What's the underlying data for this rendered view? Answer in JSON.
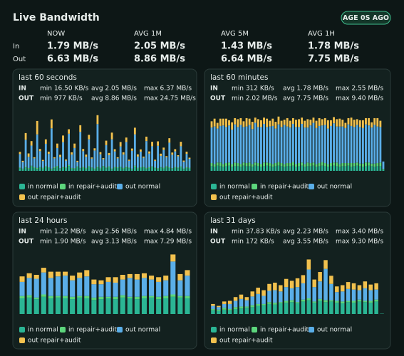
{
  "header": {
    "title": "Live Bandwidth",
    "badge": "AGE 0S AGO"
  },
  "summary": {
    "columns": [
      "NOW",
      "AVG 1M",
      "AVG 5M",
      "AVG 1H"
    ],
    "rows": [
      {
        "label": "In",
        "values": [
          "1.79 MB/s",
          "2.05 MB/s",
          "1.43 MB/s",
          "1.78 MB/s"
        ]
      },
      {
        "label": "Out",
        "values": [
          "6.63 MB/s",
          "8.86 MB/s",
          "6.64 MB/s",
          "7.75 MB/s"
        ]
      }
    ]
  },
  "chart_data": [
    {
      "type": "bar",
      "stacked": true,
      "legend": "bottom",
      "title": "last 60 seconds",
      "stats": [
        {
          "label": "IN",
          "min": "min 16.50 KB/s",
          "avg": "avg 2.05 MB/s",
          "max": "max 6.37 MB/s"
        },
        {
          "label": "OUT",
          "min": "min 977 KB/s",
          "avg": "avg 8.86 MB/s",
          "max": "max 24.75 MB/s"
        }
      ],
      "ylim": [
        0,
        28
      ],
      "series": [
        {
          "name": "in normal",
          "color": "#2bb594",
          "values": [
            1.2,
            0.8,
            1.5,
            1.0,
            2.1,
            1.3,
            0.9,
            1.6,
            1.1,
            1.8,
            1.4,
            0.7,
            1.2,
            1.9,
            1.0,
            1.5,
            1.3,
            2.2,
            1.1,
            0.9,
            1.7,
            1.2,
            1.4,
            1.0,
            1.8,
            1.3,
            0.8,
            1.5,
            1.1,
            2.0,
            1.2,
            1.6,
            0.9,
            1.4,
            1.3,
            1.7,
            1.0,
            1.5,
            1.2,
            0.8,
            1.9,
            1.1,
            1.4,
            1.6,
            1.0,
            1.3,
            1.8,
            1.2,
            0.9,
            1.5,
            1.1,
            1.7,
            1.3,
            1.0,
            1.4,
            1.2,
            1.6,
            0.9,
            1.3,
            1.1
          ]
        },
        {
          "name": "in repair+audit",
          "color": "#5cd67c",
          "values": [
            0.3,
            0.2,
            0.4,
            0.3,
            0.2,
            0.3,
            0.4,
            0.2,
            0.3,
            0.3,
            0.2,
            0.3,
            0.4,
            0.3,
            0.2,
            0.3,
            0.3,
            0.4,
            0.2,
            0.3,
            0.3,
            0.2,
            0.4,
            0.3,
            0.3,
            0.2,
            0.3,
            0.4,
            0.3,
            0.2,
            0.3,
            0.4,
            0.2,
            0.3,
            0.3,
            0.2,
            0.3,
            0.4,
            0.3,
            0.2,
            0.4,
            0.3,
            0.2,
            0.3,
            0.3,
            0.4,
            0.2,
            0.3,
            0.3,
            0.2,
            0.3,
            0.4,
            0.3,
            0.2,
            0.3,
            0.3,
            0.4,
            0.2,
            0.3,
            0.3
          ]
        },
        {
          "name": "out normal",
          "color": "#5aaee8",
          "values": [
            6,
            3,
            12,
            5,
            9,
            4,
            15,
            7,
            3,
            10,
            6,
            18,
            4,
            8,
            5,
            11,
            3,
            14,
            6,
            9,
            2,
            16,
            7,
            5,
            12,
            4,
            8,
            19,
            6,
            3,
            10,
            5,
            13,
            7,
            4,
            9,
            6,
            11,
            3,
            8,
            14,
            5,
            7,
            4,
            12,
            6,
            9,
            3,
            10,
            5,
            8,
            4,
            11,
            6,
            7,
            5,
            9,
            3,
            6,
            4
          ]
        },
        {
          "name": "out repair+audit",
          "color": "#f2c14e",
          "values": [
            1,
            0.5,
            3,
            1.5,
            2,
            0.5,
            6,
            1,
            0.5,
            2,
            1,
            4,
            0.5,
            2,
            1,
            3,
            0.5,
            2,
            1,
            2,
            0.5,
            3,
            1,
            1,
            2,
            0.5,
            1,
            4,
            1,
            0.5,
            2,
            1,
            3,
            1,
            0.5,
            2,
            1,
            2,
            0.5,
            1,
            3,
            1,
            1,
            0.5,
            2,
            1,
            2,
            0.5,
            2,
            1,
            1,
            0.5,
            2,
            1,
            1,
            0.5,
            2,
            0.5,
            1,
            0.5
          ]
        }
      ]
    },
    {
      "type": "bar",
      "stacked": true,
      "legend": "bottom",
      "title": "last 60 minutes",
      "stats": [
        {
          "label": "IN",
          "min": "min 312 KB/s",
          "avg": "avg 1.78 MB/s",
          "max": "max 2.55 MB/s"
        },
        {
          "label": "OUT",
          "min": "min 2.02 MB/s",
          "avg": "avg 7.75 MB/s",
          "max": "max 9.40 MB/s"
        }
      ],
      "ylim": [
        0,
        12
      ],
      "series": [
        {
          "name": "in normal",
          "color": "#2bb594",
          "values": [
            0.9,
            0.8,
            1.0,
            0.9,
            0.8,
            0.9,
            1.0,
            0.8,
            0.9,
            0.9,
            0.8,
            1.0,
            0.9,
            0.9,
            0.8,
            1.0,
            0.9,
            0.8,
            0.9,
            1.0,
            0.9,
            0.8,
            0.9,
            1.0,
            0.9,
            0.8,
            0.9,
            0.9,
            1.0,
            0.8,
            0.9,
            1.0,
            0.8,
            0.9,
            0.9,
            1.0,
            0.8,
            0.9,
            1.0,
            0.9,
            0.8,
            0.9,
            1.0,
            0.9,
            0.8,
            0.9,
            0.9,
            1.0,
            0.8,
            0.9,
            1.0,
            0.9,
            0.8,
            0.9,
            1.0,
            0.9,
            0.8,
            0.9,
            0.9,
            0.3
          ]
        },
        {
          "name": "in repair+audit",
          "color": "#5cd67c",
          "values": [
            0.6,
            0.5,
            0.6,
            0.7,
            0.5,
            0.6,
            0.6,
            0.5,
            0.7,
            0.6,
            0.5,
            0.6,
            0.6,
            0.7,
            0.5,
            0.6,
            0.6,
            0.5,
            0.7,
            0.6,
            0.6,
            0.5,
            0.6,
            0.7,
            0.6,
            0.5,
            0.6,
            0.6,
            0.7,
            0.5,
            0.6,
            0.6,
            0.5,
            0.7,
            0.6,
            0.6,
            0.5,
            0.6,
            0.7,
            0.6,
            0.5,
            0.6,
            0.6,
            0.7,
            0.5,
            0.6,
            0.6,
            0.5,
            0.7,
            0.6,
            0.6,
            0.5,
            0.6,
            0.7,
            0.6,
            0.5,
            0.6,
            0.6,
            0.7,
            0.1
          ]
        },
        {
          "name": "out normal",
          "color": "#5aaee8",
          "values": [
            6.8,
            7.2,
            6.5,
            7.0,
            7.4,
            6.9,
            7.1,
            6.6,
            7.3,
            6.9,
            7.5,
            6.8,
            7.0,
            7.2,
            6.7,
            7.6,
            6.9,
            7.1,
            7.4,
            6.8,
            7.0,
            7.3,
            6.6,
            7.2,
            6.9,
            7.5,
            7.0,
            6.8,
            7.3,
            7.1,
            6.9,
            7.4,
            7.0,
            6.7,
            7.2,
            7.6,
            6.9,
            7.1,
            7.0,
            7.3,
            6.8,
            7.1,
            7.5,
            6.9,
            7.2,
            7.0,
            6.7,
            7.4,
            7.1,
            6.9,
            7.2,
            7.0,
            6.8,
            7.3,
            7.1,
            6.9,
            7.4,
            7.0,
            6.8,
            1.4
          ]
        },
        {
          "name": "out repair+audit",
          "color": "#f2c14e",
          "values": [
            1.2,
            1.5,
            1.1,
            1.4,
            1.3,
            1.6,
            1.0,
            1.4,
            1.2,
            1.5,
            1.3,
            1.1,
            1.6,
            1.2,
            1.4,
            1.0,
            1.5,
            1.3,
            1.2,
            1.6,
            1.1,
            1.4,
            1.3,
            1.5,
            1.2,
            1.0,
            1.6,
            1.3,
            1.1,
            1.4,
            1.5,
            1.2,
            1.3,
            1.6,
            1.1,
            1.0,
            1.4,
            1.5,
            1.2,
            1.3,
            1.6,
            1.1,
            1.2,
            1.4,
            1.5,
            1.3,
            1.0,
            1.2,
            1.6,
            1.4,
            1.1,
            1.3,
            1.5,
            1.2,
            1.4,
            1.0,
            1.3,
            1.6,
            1.2,
            0
          ]
        }
      ]
    },
    {
      "type": "bar",
      "stacked": true,
      "legend": "bottom",
      "title": "last 24 hours",
      "stats": [
        {
          "label": "IN",
          "min": "min 1.22 MB/s",
          "avg": "avg 2.56 MB/s",
          "max": "max 4.84 MB/s"
        },
        {
          "label": "OUT",
          "min": "min 1.90 MB/s",
          "avg": "avg 3.13 MB/s",
          "max": "max 7.29 MB/s"
        }
      ],
      "ylim": [
        0,
        8
      ],
      "series": [
        {
          "name": "in normal",
          "color": "#2bb594",
          "values": [
            2.0,
            2.1,
            1.9,
            2.2,
            2.0,
            2.1,
            2.0,
            1.9,
            2.1,
            2.0,
            1.8,
            1.9,
            2.0,
            1.9,
            2.1,
            2.0,
            1.9,
            2.0,
            2.1,
            1.9,
            2.0,
            2.2,
            2.1,
            2.0
          ]
        },
        {
          "name": "in repair+audit",
          "color": "#5cd67c",
          "values": [
            0.3,
            0.3,
            0.2,
            0.3,
            0.3,
            0.2,
            0.3,
            0.3,
            0.2,
            0.3,
            0.3,
            0.3,
            0.2,
            0.3,
            0.3,
            0.2,
            0.3,
            0.3,
            0.2,
            0.3,
            0.3,
            0.3,
            0.2,
            0.3
          ]
        },
        {
          "name": "out normal",
          "color": "#5aaee8",
          "values": [
            1.8,
            2.2,
            2.4,
            2.8,
            2.3,
            2.5,
            2.6,
            2.1,
            2.3,
            2.5,
            1.7,
            1.6,
            1.9,
            1.8,
            2.0,
            2.4,
            2.2,
            2.3,
            2.1,
            1.9,
            2.0,
            4.2,
            2.0,
            2.6
          ]
        },
        {
          "name": "out repair+audit",
          "color": "#f2c14e",
          "values": [
            0.7,
            0.6,
            0.5,
            0.6,
            0.8,
            0.6,
            0.5,
            0.6,
            0.7,
            0.8,
            0.6,
            0.5,
            0.6,
            0.7,
            0.6,
            0.5,
            0.7,
            0.6,
            0.5,
            0.6,
            0.6,
            0.9,
            0.8,
            0.7
          ]
        }
      ]
    },
    {
      "type": "bar",
      "stacked": true,
      "legend": "bottom",
      "title": "last 31 days",
      "stats": [
        {
          "label": "IN",
          "min": "min 37.83 KB/s",
          "avg": "avg 2.23 MB/s",
          "max": "max 3.40 MB/s"
        },
        {
          "label": "OUT",
          "min": "min 172 KB/s",
          "avg": "avg 3.55 MB/s",
          "max": "max 9.30 MB/s"
        }
      ],
      "ylim": [
        0,
        10
      ],
      "series": [
        {
          "name": "in normal",
          "color": "#2bb594",
          "values": [
            0.6,
            0.5,
            0.7,
            0.6,
            0.8,
            0.9,
            1.0,
            1.1,
            1.3,
            1.4,
            1.6,
            1.5,
            1.7,
            1.8,
            1.9,
            1.7,
            2.0,
            2.2,
            1.8,
            2.1,
            1.9,
            2.0,
            1.8,
            1.7,
            1.9,
            1.8,
            2.0,
            1.9,
            1.8,
            2.0,
            0.05
          ]
        },
        {
          "name": "in repair+audit",
          "color": "#5cd67c",
          "values": [
            0.2,
            0.2,
            0.3,
            0.2,
            0.3,
            0.3,
            0.2,
            0.3,
            0.3,
            0.2,
            0.3,
            0.3,
            0.2,
            0.3,
            0.3,
            0.2,
            0.3,
            0.3,
            0.2,
            0.3,
            0.3,
            0.2,
            0.3,
            0.3,
            0.2,
            0.3,
            0.3,
            0.2,
            0.3,
            0.3,
            0
          ]
        },
        {
          "name": "out normal",
          "color": "#5aaee8",
          "values": [
            0.5,
            0.4,
            0.6,
            0.8,
            1.0,
            1.2,
            1.0,
            1.4,
            1.6,
            1.3,
            1.8,
            2.0,
            1.7,
            2.2,
            1.9,
            2.4,
            2.6,
            4.6,
            2.3,
            2.8,
            5.0,
            2.6,
            1.4,
            1.6,
            1.9,
            1.8,
            1.5,
            2.0,
            1.7,
            1.6,
            0
          ]
        },
        {
          "name": "out repair+audit",
          "color": "#f2c14e",
          "values": [
            0.3,
            0.2,
            0.4,
            0.5,
            0.6,
            0.7,
            0.5,
            0.8,
            1.0,
            0.9,
            1.1,
            1.2,
            1.0,
            1.3,
            1.2,
            1.4,
            1.3,
            1.6,
            1.2,
            1.5,
            1.4,
            1.3,
            0.9,
            1.0,
            1.1,
            1.0,
            0.8,
            1.1,
            0.9,
            1.0,
            0
          ]
        }
      ]
    }
  ]
}
